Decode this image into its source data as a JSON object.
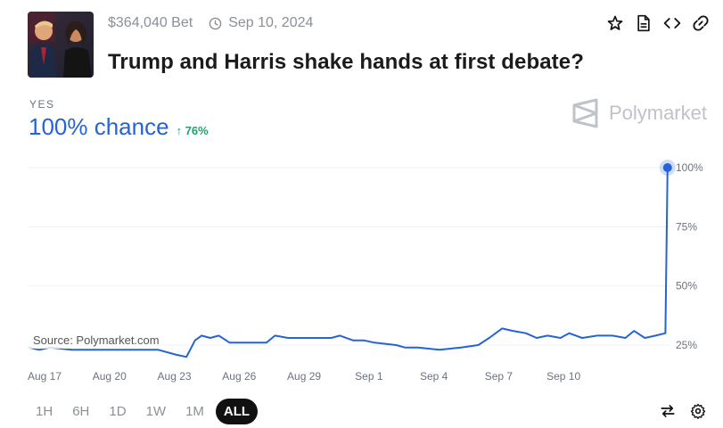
{
  "header": {
    "volume": "$364,040 Bet",
    "date": "Sep 10, 2024",
    "title": "Trump and Harris shake hands at first debate?",
    "icons": [
      "clock-icon",
      "star-icon",
      "document-icon",
      "code-icon",
      "link-icon"
    ]
  },
  "outcome": {
    "label": "YES",
    "chance": "100% chance",
    "delta": "76%"
  },
  "brand": {
    "name": "Polymarket"
  },
  "source": "Source: Polymarket.com",
  "timeframes": [
    "1H",
    "6H",
    "1D",
    "1W",
    "1M",
    "ALL"
  ],
  "active_timeframe": "ALL",
  "colors": {
    "accent": "#2563d6",
    "positive": "#22a06b",
    "brand_gray": "#bfc3c9"
  },
  "chart_data": {
    "type": "line",
    "x_ticks": [
      "Aug 17",
      "Aug 20",
      "Aug 23",
      "Aug 26",
      "Aug 29",
      "Sep 1",
      "Sep 4",
      "Sep 7",
      "Sep 10"
    ],
    "y_ticks": [
      "100%",
      "75%",
      "50%",
      "25%"
    ],
    "ylim": [
      0,
      100
    ],
    "grid": true,
    "series": [
      {
        "points": [
          [
            0,
            24
          ],
          [
            0.5,
            23
          ],
          [
            1,
            24
          ],
          [
            2,
            23
          ],
          [
            3,
            23
          ],
          [
            4,
            23
          ],
          [
            5,
            23
          ],
          [
            6,
            23
          ],
          [
            6.8,
            21
          ],
          [
            7.3,
            20
          ],
          [
            7.7,
            27
          ],
          [
            8,
            29
          ],
          [
            8.4,
            28
          ],
          [
            8.8,
            29
          ],
          [
            9.3,
            26
          ],
          [
            10,
            26
          ],
          [
            11,
            26
          ],
          [
            11.4,
            29
          ],
          [
            12,
            28
          ],
          [
            13,
            28
          ],
          [
            14,
            28
          ],
          [
            14.4,
            29
          ],
          [
            15,
            27
          ],
          [
            15.5,
            27
          ],
          [
            16,
            26
          ],
          [
            17,
            25
          ],
          [
            17.4,
            24
          ],
          [
            18,
            24
          ],
          [
            19,
            23
          ],
          [
            20,
            24
          ],
          [
            20.8,
            25
          ],
          [
            21.3,
            28
          ],
          [
            21.9,
            32
          ],
          [
            22.4,
            31
          ],
          [
            23,
            30
          ],
          [
            23.5,
            28
          ],
          [
            24,
            29
          ],
          [
            24.6,
            28
          ],
          [
            25,
            30
          ],
          [
            25.6,
            28
          ],
          [
            26.3,
            29
          ],
          [
            27,
            29
          ],
          [
            27.6,
            28
          ],
          [
            28,
            31
          ],
          [
            28.5,
            28
          ],
          [
            29,
            29
          ],
          [
            29.45,
            30
          ],
          [
            29.55,
            100
          ]
        ]
      }
    ]
  }
}
